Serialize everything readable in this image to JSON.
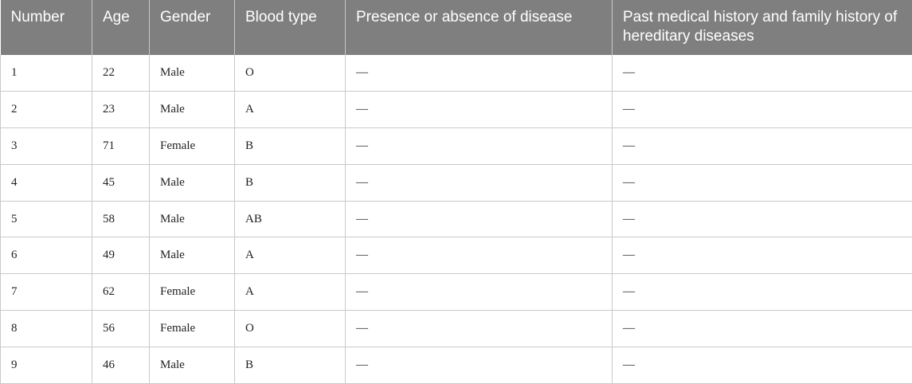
{
  "table": {
    "headers": [
      "Number",
      "Age",
      "Gender",
      "Blood type",
      "Presence or absence of disease",
      "Past medical history and family history of hereditary diseases"
    ],
    "rows": [
      [
        "1",
        "22",
        "Male",
        "O",
        "—",
        "—"
      ],
      [
        "2",
        "23",
        "Male",
        "A",
        "—",
        "—"
      ],
      [
        "3",
        "71",
        "Female",
        "B",
        "—",
        "—"
      ],
      [
        "4",
        "45",
        "Male",
        "B",
        "—",
        "—"
      ],
      [
        "5",
        "58",
        "Male",
        "AB",
        "—",
        "—"
      ],
      [
        "6",
        "49",
        "Male",
        "A",
        "—",
        "—"
      ],
      [
        "7",
        "62",
        "Female",
        "A",
        "—",
        "—"
      ],
      [
        "8",
        "56",
        "Female",
        "O",
        "—",
        "—"
      ],
      [
        "9",
        "46",
        "Male",
        "B",
        "—",
        "—"
      ]
    ]
  }
}
